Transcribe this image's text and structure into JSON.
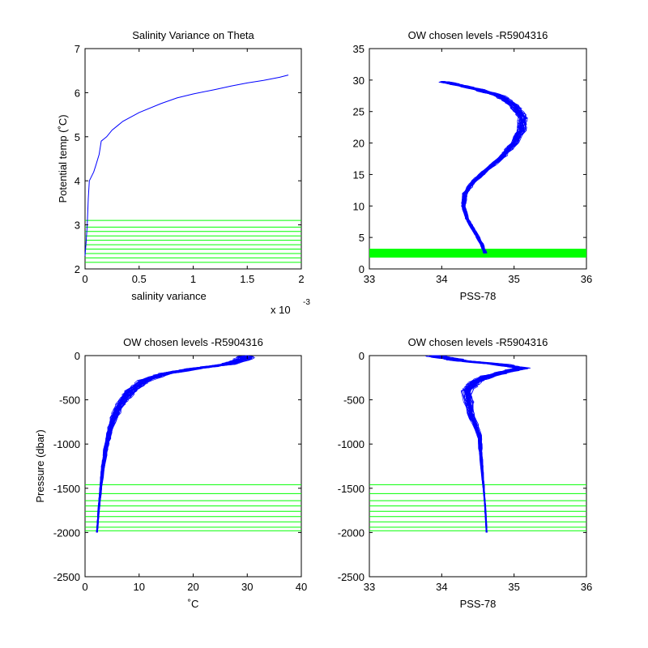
{
  "figure": {
    "background": "#ffffff",
    "data_color": "#0000ff",
    "level_color": "#00ff00"
  },
  "chart_data": [
    {
      "type": "line",
      "title": "Salinity Variance on Theta",
      "xlabel": "salinity variance",
      "ylabel": "Potential temp (˚C)",
      "x_multiplier": "x 10",
      "x_exponent": "-3",
      "xlim": [
        0,
        2
      ],
      "ylim": [
        2,
        7
      ],
      "xticks": [
        "0",
        "0.5",
        "1",
        "1.5",
        "2"
      ],
      "yticks": [
        "2",
        "3",
        "4",
        "5",
        "6",
        "7"
      ],
      "series": [
        {
          "x": [
            0.0,
            0.01,
            0.02,
            0.03,
            0.04,
            0.08,
            0.1,
            0.13,
            0.15,
            0.2,
            0.25,
            0.3,
            0.35,
            0.5,
            0.7,
            0.85,
            1.0,
            1.2,
            1.35,
            1.5,
            1.65,
            1.8,
            1.88
          ],
          "y": [
            2.3,
            2.6,
            3.0,
            3.6,
            4.0,
            4.2,
            4.35,
            4.6,
            4.9,
            5.0,
            5.15,
            5.25,
            5.35,
            5.55,
            5.75,
            5.88,
            5.97,
            6.07,
            6.15,
            6.22,
            6.28,
            6.35,
            6.4
          ]
        }
      ],
      "levels": [
        2.15,
        2.25,
        2.35,
        2.45,
        2.55,
        2.65,
        2.75,
        2.85,
        2.95,
        3.1
      ]
    },
    {
      "type": "line",
      "title": "OW chosen levels -R5904316",
      "xlabel": "PSS-78",
      "ylabel": "",
      "xlim": [
        33,
        36
      ],
      "ylim": [
        0,
        35
      ],
      "xticks": [
        "33",
        "34",
        "35",
        "36"
      ],
      "yticks": [
        "0",
        "5",
        "10",
        "15",
        "20",
        "25",
        "30",
        "35"
      ],
      "profile_count": 40,
      "mean_profile": {
        "x": [
          34.6,
          34.55,
          34.45,
          34.35,
          34.3,
          34.32,
          34.45,
          34.65,
          34.85,
          35.0,
          35.1,
          35.12,
          35.0,
          34.8,
          34.5,
          34.2,
          34.0
        ],
        "y": [
          2.5,
          4,
          6,
          8,
          10,
          12,
          14,
          16,
          18,
          20,
          22,
          24,
          26,
          27.5,
          28.5,
          29.3,
          29.8
        ]
      },
      "levels": [
        2.0,
        2.2,
        2.4,
        2.6,
        2.8,
        3.0
      ]
    },
    {
      "type": "line",
      "title": "OW chosen levels -R5904316",
      "xlabel": "˚C",
      "ylabel": "Pressure (dbar)",
      "xlim": [
        0,
        40
      ],
      "ylim": [
        -2500,
        0
      ],
      "xticks": [
        "0",
        "10",
        "20",
        "30",
        "40"
      ],
      "yticks": [
        "-2500",
        "-2000",
        "-1500",
        "-1000",
        "-500",
        "0"
      ],
      "profile_count": 40,
      "mean_profile": {
        "x": [
          2.2,
          2.5,
          2.9,
          3.3,
          4.0,
          5.0,
          6.5,
          8.5,
          11,
          15,
          20,
          26,
          29,
          30
        ],
        "y": [
          -2000,
          -1750,
          -1500,
          -1250,
          -1000,
          -750,
          -550,
          -400,
          -280,
          -200,
          -150,
          -100,
          -50,
          0
        ]
      },
      "levels": [
        -1460,
        -1560,
        -1640,
        -1700,
        -1760,
        -1820,
        -1880,
        -1940,
        -1980
      ]
    },
    {
      "type": "line",
      "title": "OW chosen levels -R5904316",
      "xlabel": "PSS-78",
      "ylabel": "",
      "xlim": [
        33,
        36
      ],
      "ylim": [
        -2500,
        0
      ],
      "xticks": [
        "33",
        "34",
        "35",
        "36"
      ],
      "yticks": [
        "-2500",
        "-2000",
        "-1500",
        "-1000",
        "-500",
        "0"
      ],
      "profile_count": 40,
      "mean_profile": {
        "x": [
          34.62,
          34.6,
          34.57,
          34.54,
          34.52,
          34.4,
          34.35,
          34.45,
          34.65,
          34.9,
          35.1,
          34.8,
          34.3,
          34.0,
          33.9
        ],
        "y": [
          -2000,
          -1700,
          -1400,
          -1100,
          -900,
          -650,
          -400,
          -300,
          -230,
          -180,
          -140,
          -100,
          -60,
          -20,
          0
        ]
      },
      "levels": [
        -1460,
        -1560,
        -1640,
        -1700,
        -1760,
        -1820,
        -1880,
        -1940,
        -1980
      ]
    }
  ]
}
